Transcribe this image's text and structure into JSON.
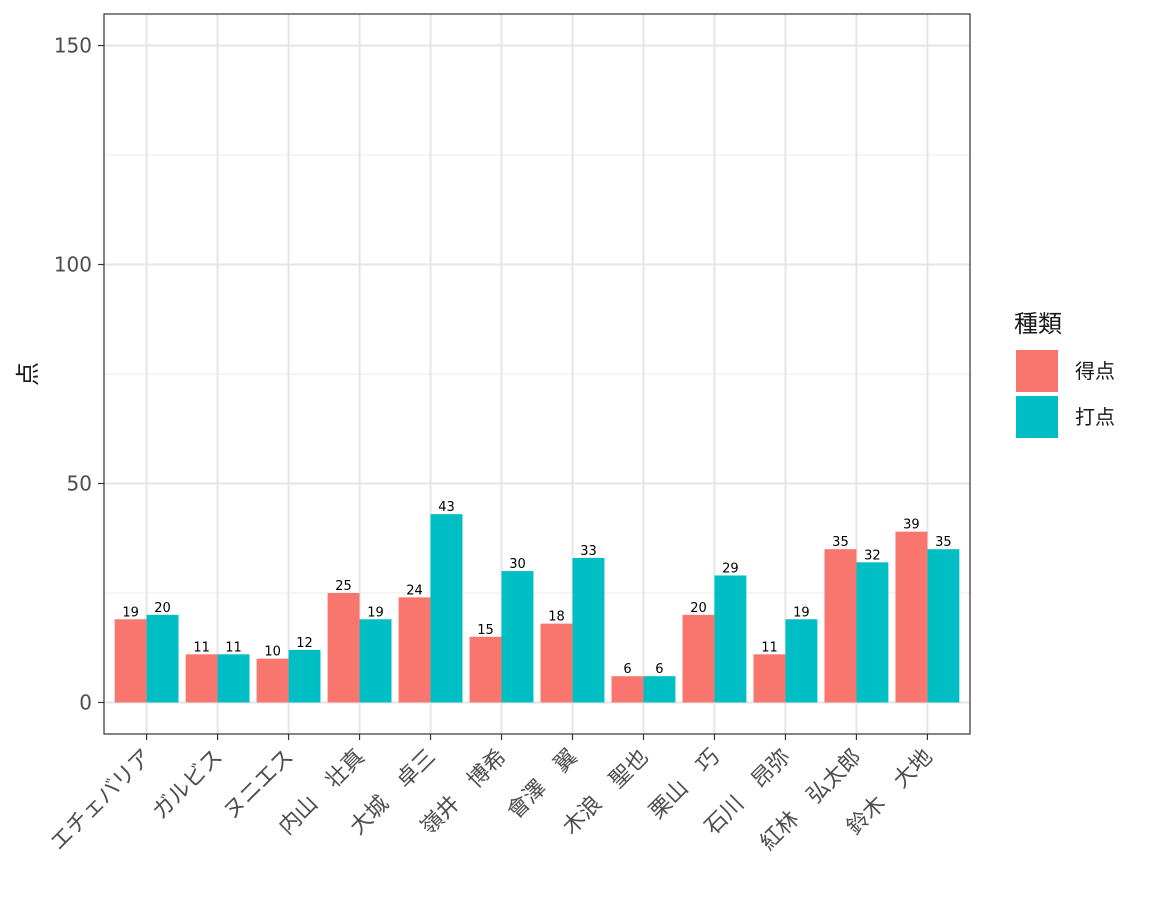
{
  "chart_data": {
    "type": "bar",
    "categories": [
      "エチェバリア",
      "ガルビス",
      "ヌニエス",
      "内山　壮真",
      "大城　卓三",
      "嶺井　博希",
      "會澤　翼",
      "木浪　聖也",
      "栗山　巧",
      "石川　昂弥",
      "紅林　弘太郎",
      "鈴木　大地"
    ],
    "series": [
      {
        "name": "得点",
        "color": "#F8766D",
        "values": [
          19,
          11,
          10,
          25,
          24,
          15,
          18,
          6,
          20,
          11,
          35,
          39
        ]
      },
      {
        "name": "打点",
        "color": "#00BFC4",
        "values": [
          20,
          11,
          12,
          19,
          43,
          30,
          33,
          6,
          29,
          19,
          32,
          35
        ]
      }
    ],
    "ylabel": "点",
    "ylim": [
      0,
      150
    ],
    "yticks": [
      0,
      50,
      100,
      150
    ],
    "grid": true,
    "legend": {
      "title": "種類",
      "position": "right"
    }
  }
}
